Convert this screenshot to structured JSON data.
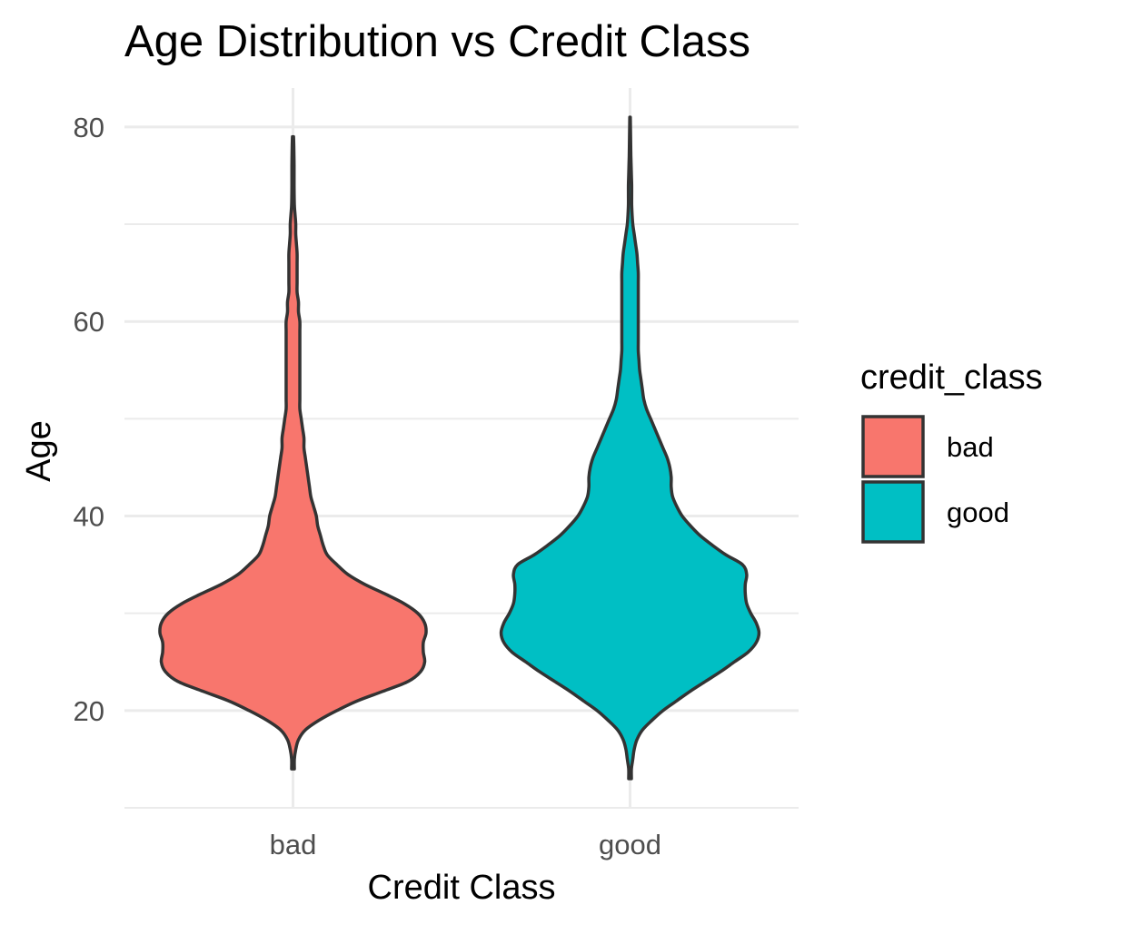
{
  "chart_data": {
    "type": "violin",
    "title": "Age Distribution vs Credit Class",
    "xlabel": "Credit Class",
    "ylabel": "Age",
    "categories": [
      "bad",
      "good"
    ],
    "ylim": [
      10,
      84
    ],
    "yticks": [
      20,
      40,
      60,
      80
    ],
    "grid": true,
    "legend": {
      "title": "credit_class",
      "placement": "right",
      "items": [
        {
          "label": "bad",
          "color": "#F8766D"
        },
        {
          "label": "good",
          "color": "#00BFC4"
        }
      ]
    },
    "series": [
      {
        "category": "bad",
        "color": "#F8766D",
        "y_min": 14,
        "y_max": 79,
        "density_profile": [
          [
            14,
            0.01
          ],
          [
            15,
            0.01
          ],
          [
            16,
            0.02
          ],
          [
            17,
            0.04
          ],
          [
            18,
            0.09
          ],
          [
            19,
            0.19
          ],
          [
            20,
            0.32
          ],
          [
            21,
            0.47
          ],
          [
            22,
            0.66
          ],
          [
            23,
            0.84
          ],
          [
            24,
            0.93
          ],
          [
            25,
            0.96
          ],
          [
            26,
            0.95
          ],
          [
            27,
            0.95
          ],
          [
            28,
            0.97
          ],
          [
            29,
            0.96
          ],
          [
            30,
            0.91
          ],
          [
            31,
            0.81
          ],
          [
            32,
            0.67
          ],
          [
            33,
            0.52
          ],
          [
            34,
            0.4
          ],
          [
            35,
            0.32
          ],
          [
            36,
            0.25
          ],
          [
            37,
            0.22
          ],
          [
            38,
            0.2
          ],
          [
            39,
            0.18
          ],
          [
            40,
            0.17
          ],
          [
            41,
            0.15
          ],
          [
            42,
            0.13
          ],
          [
            43,
            0.12
          ],
          [
            44,
            0.11
          ],
          [
            45,
            0.1
          ],
          [
            46,
            0.09
          ],
          [
            47,
            0.08
          ],
          [
            48,
            0.08
          ],
          [
            49,
            0.07
          ],
          [
            50,
            0.06
          ],
          [
            51,
            0.05
          ],
          [
            52,
            0.05
          ],
          [
            53,
            0.05
          ],
          [
            54,
            0.05
          ],
          [
            55,
            0.05
          ],
          [
            56,
            0.05
          ],
          [
            57,
            0.05
          ],
          [
            58,
            0.05
          ],
          [
            59,
            0.05
          ],
          [
            60,
            0.05
          ],
          [
            61,
            0.04
          ],
          [
            62,
            0.04
          ],
          [
            63,
            0.03
          ],
          [
            64,
            0.03
          ],
          [
            65,
            0.03
          ],
          [
            66,
            0.03
          ],
          [
            67,
            0.03
          ],
          [
            68,
            0.025
          ],
          [
            69,
            0.02
          ],
          [
            70,
            0.02
          ],
          [
            71,
            0.015
          ],
          [
            72,
            0.01
          ],
          [
            74,
            0.008
          ],
          [
            76,
            0.008
          ],
          [
            78,
            0.006
          ],
          [
            79,
            0.004
          ]
        ]
      },
      {
        "category": "good",
        "color": "#00BFC4",
        "y_min": 13,
        "y_max": 81,
        "density_profile": [
          [
            13,
            0.01
          ],
          [
            14,
            0.01
          ],
          [
            15,
            0.02
          ],
          [
            16,
            0.03
          ],
          [
            17,
            0.05
          ],
          [
            18,
            0.09
          ],
          [
            19,
            0.16
          ],
          [
            20,
            0.24
          ],
          [
            21,
            0.34
          ],
          [
            22,
            0.44
          ],
          [
            23,
            0.55
          ],
          [
            24,
            0.66
          ],
          [
            25,
            0.76
          ],
          [
            26,
            0.86
          ],
          [
            27,
            0.92
          ],
          [
            28,
            0.94
          ],
          [
            29,
            0.92
          ],
          [
            30,
            0.88
          ],
          [
            31,
            0.85
          ],
          [
            32,
            0.84
          ],
          [
            33,
            0.84
          ],
          [
            34,
            0.85
          ],
          [
            35,
            0.82
          ],
          [
            36,
            0.7
          ],
          [
            37,
            0.6
          ],
          [
            38,
            0.51
          ],
          [
            39,
            0.44
          ],
          [
            40,
            0.38
          ],
          [
            41,
            0.34
          ],
          [
            42,
            0.31
          ],
          [
            43,
            0.3
          ],
          [
            44,
            0.3
          ],
          [
            45,
            0.29
          ],
          [
            46,
            0.27
          ],
          [
            47,
            0.24
          ],
          [
            48,
            0.21
          ],
          [
            49,
            0.18
          ],
          [
            50,
            0.15
          ],
          [
            51,
            0.12
          ],
          [
            52,
            0.1
          ],
          [
            53,
            0.09
          ],
          [
            54,
            0.08
          ],
          [
            55,
            0.07
          ],
          [
            56,
            0.065
          ],
          [
            57,
            0.06
          ],
          [
            58,
            0.06
          ],
          [
            59,
            0.06
          ],
          [
            60,
            0.06
          ],
          [
            61,
            0.06
          ],
          [
            62,
            0.06
          ],
          [
            63,
            0.06
          ],
          [
            64,
            0.06
          ],
          [
            65,
            0.06
          ],
          [
            66,
            0.055
          ],
          [
            67,
            0.05
          ],
          [
            68,
            0.04
          ],
          [
            69,
            0.03
          ],
          [
            70,
            0.02
          ],
          [
            71,
            0.015
          ],
          [
            72,
            0.012
          ],
          [
            73,
            0.012
          ],
          [
            74,
            0.012
          ],
          [
            75,
            0.01
          ],
          [
            76,
            0.008
          ],
          [
            77,
            0.006
          ],
          [
            78,
            0.005
          ],
          [
            79,
            0.004
          ],
          [
            80,
            0.003
          ],
          [
            81,
            0.002
          ]
        ]
      }
    ]
  }
}
